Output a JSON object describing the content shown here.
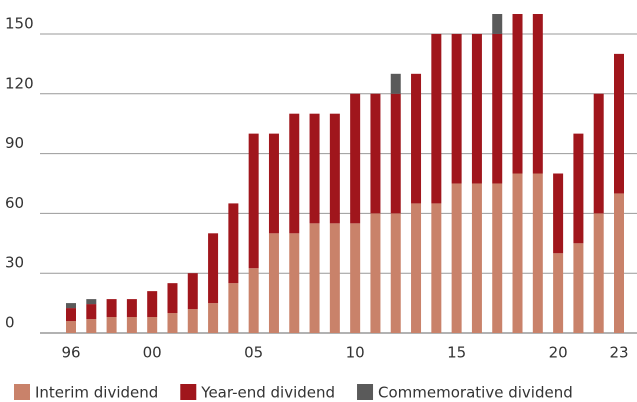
{
  "chart_data": {
    "type": "stacked_bar",
    "categories": [
      "96",
      null,
      null,
      null,
      "00",
      null,
      null,
      null,
      null,
      "05",
      null,
      null,
      null,
      null,
      "10",
      null,
      null,
      null,
      null,
      "15",
      null,
      null,
      null,
      null,
      "20",
      null,
      null,
      "23"
    ],
    "series": [
      {
        "name": "Interim dividend",
        "color": "#c9826a",
        "values": [
          6,
          7,
          8,
          8,
          8,
          10,
          12,
          15,
          25,
          32.5,
          50,
          50,
          55,
          55,
          55,
          60,
          60,
          65,
          65,
          75,
          75,
          75,
          80,
          80,
          40,
          45,
          60,
          70
        ]
      },
      {
        "name": "Year-end dividend",
        "color": "#a0161c",
        "values": [
          6.5,
          7.5,
          9,
          9,
          13,
          15,
          18,
          35,
          40,
          67.5,
          50,
          60,
          55,
          55,
          65,
          60,
          60,
          65,
          85,
          75,
          75,
          75,
          80,
          80,
          40,
          55,
          60,
          70
        ]
      },
      {
        "name": "Commemorative dividend",
        "color": "#5a5a5a",
        "values": [
          2.5,
          2.5,
          null,
          null,
          null,
          null,
          null,
          null,
          null,
          null,
          null,
          null,
          null,
          null,
          null,
          null,
          10,
          null,
          null,
          null,
          null,
          10,
          null,
          null,
          null,
          null,
          null,
          null
        ]
      }
    ],
    "ylim": [
      0,
      160
    ],
    "yticks": [
      0,
      30,
      60,
      90,
      120,
      150
    ],
    "grid": true
  }
}
